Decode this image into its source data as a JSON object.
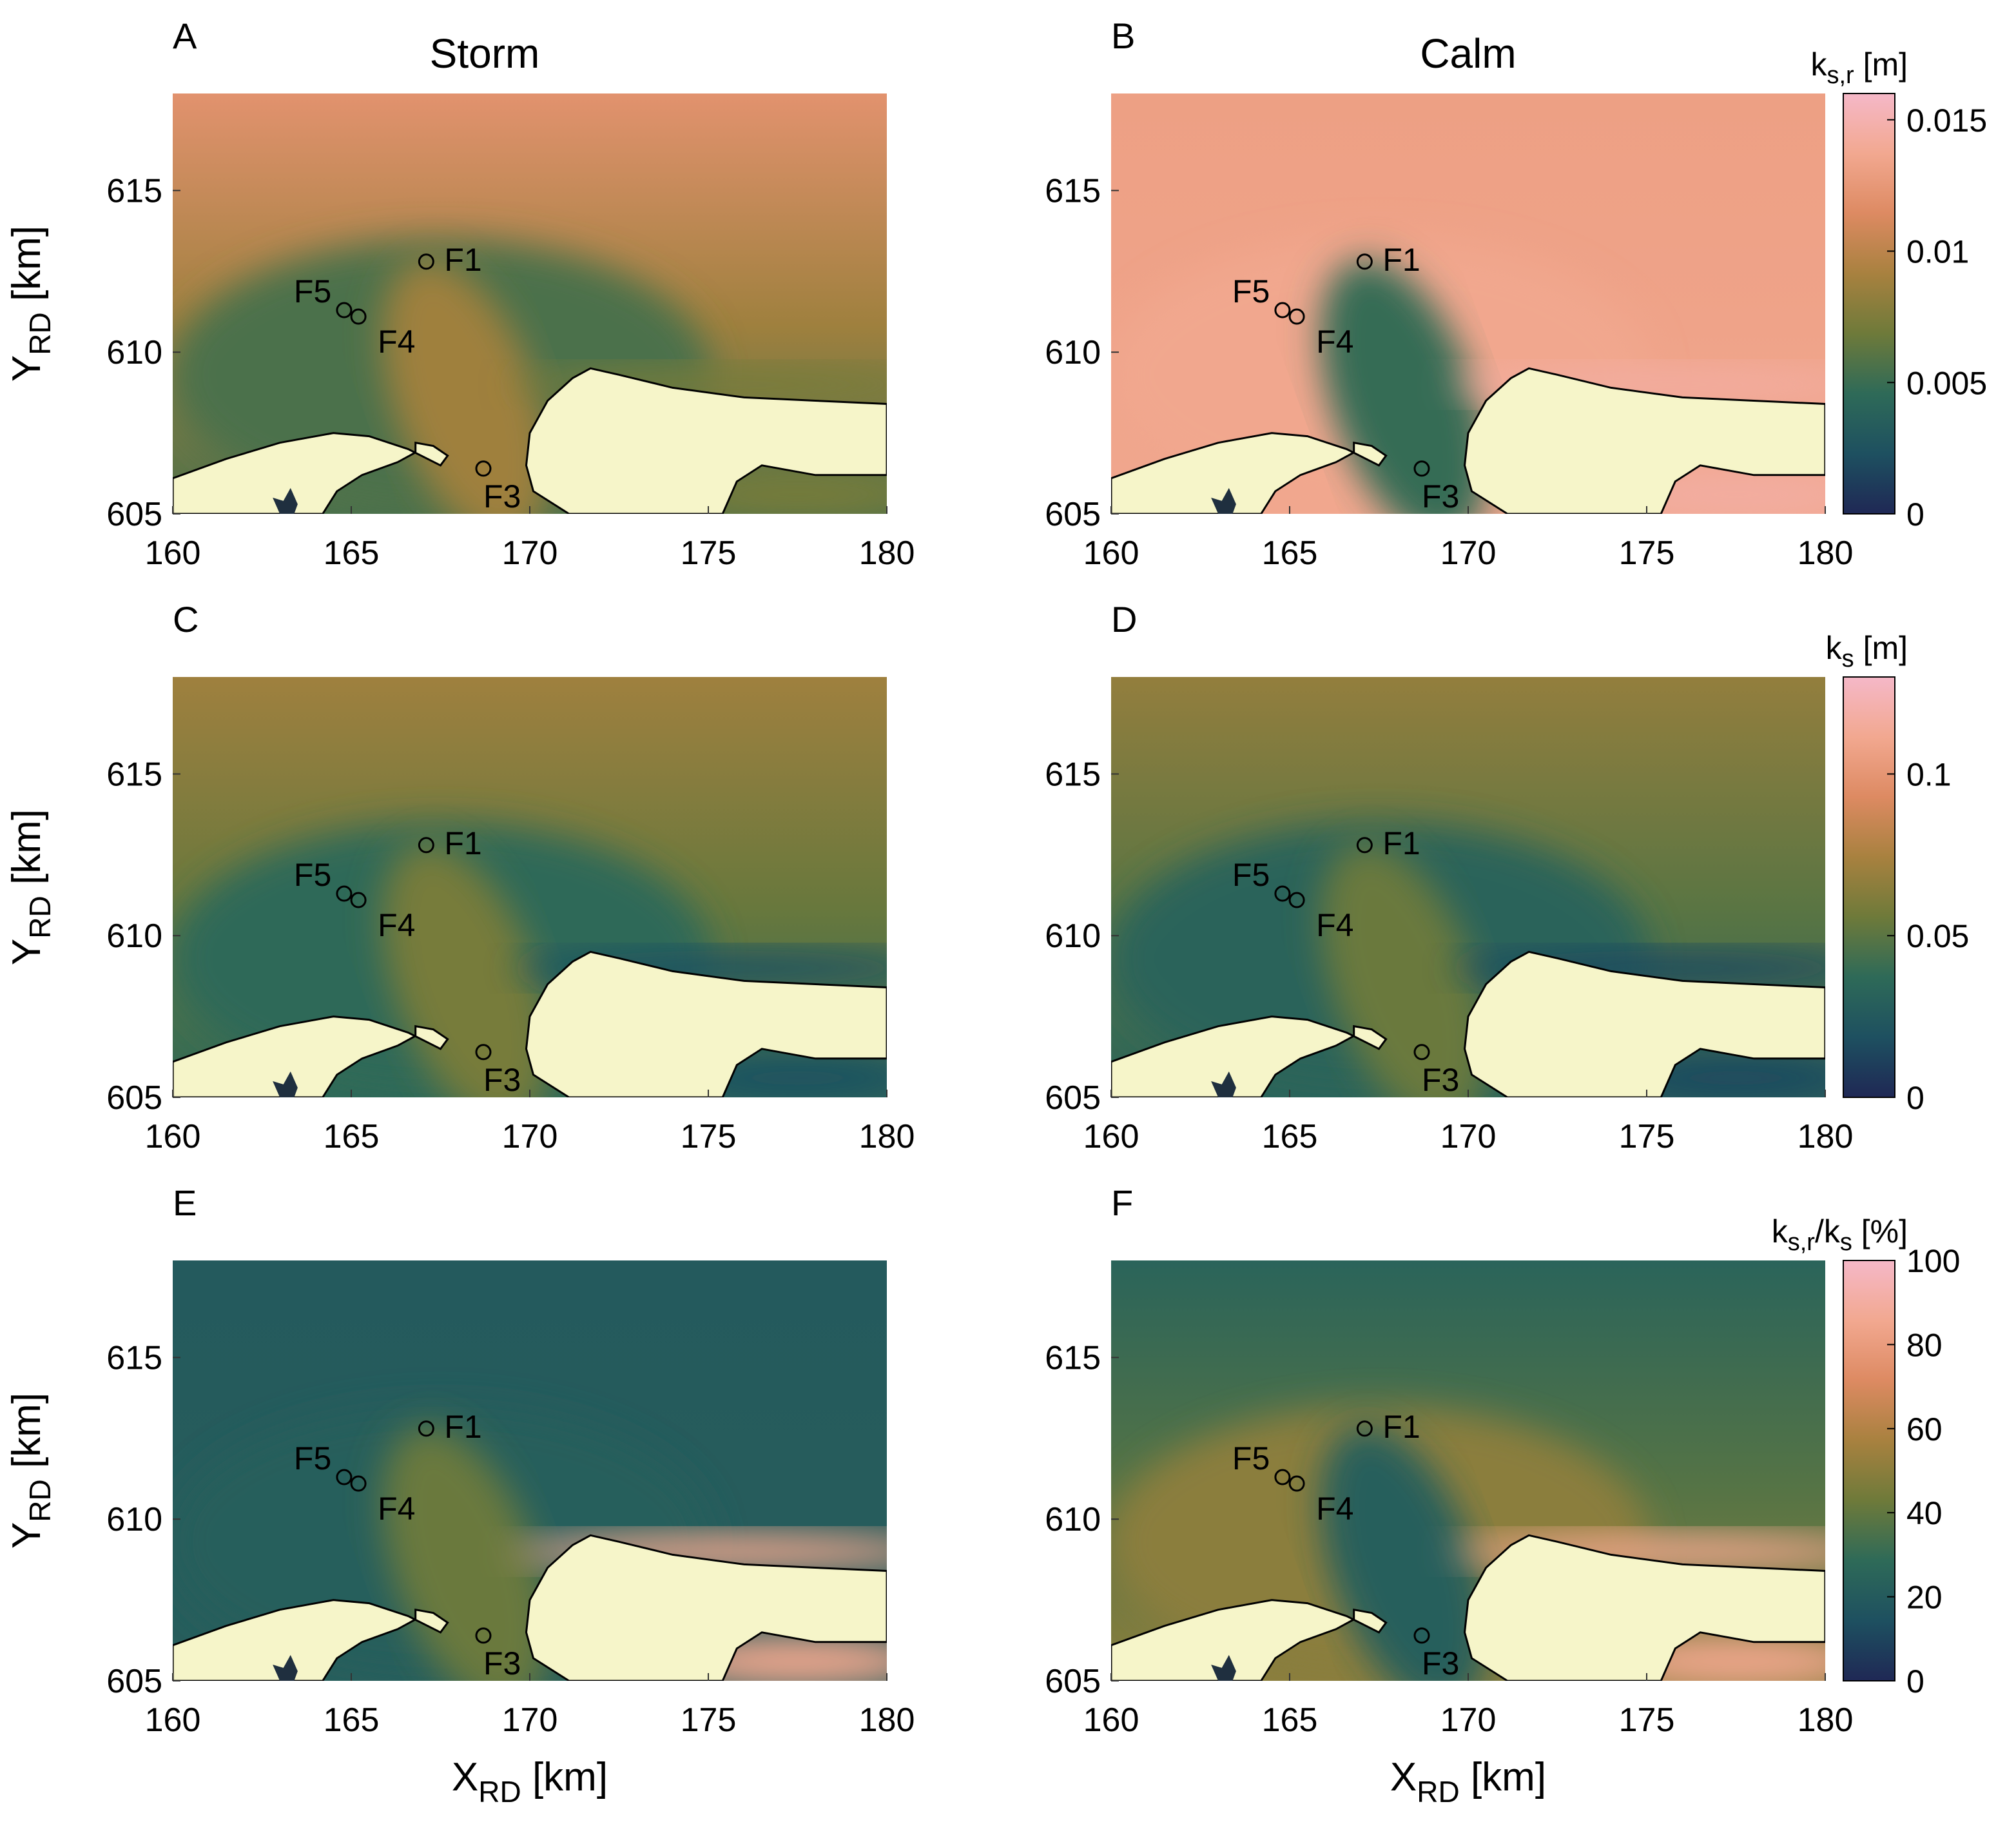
{
  "figure": {
    "columns": [
      {
        "title": "Storm"
      },
      {
        "title": "Calm"
      }
    ],
    "x_axis": {
      "label_main": "X",
      "label_sub": "RD",
      "label_unit": " [km]"
    },
    "y_axis": {
      "label_main": "Y",
      "label_sub": "RD",
      "label_unit": " [km]"
    },
    "land_color": "#f6f5c9",
    "colormap": [
      "#1f2855",
      "#1e5060",
      "#2e6a58",
      "#6e7a3a",
      "#a8813f",
      "#dd8a62",
      "#f2a890",
      "#f5b8c8"
    ]
  },
  "chart_data": [
    {
      "panel": "A",
      "column": "Storm",
      "type": "heatmap",
      "quantity": "k_s,r",
      "xlim": [
        160,
        180
      ],
      "ylim": [
        605,
        618
      ],
      "xticks": [
        160,
        165,
        170,
        175,
        180
      ],
      "yticks": [
        605,
        610,
        615
      ],
      "stations": [
        {
          "name": "F1",
          "x": 167.1,
          "y": 612.8
        },
        {
          "name": "F5",
          "x": 164.8,
          "y": 611.3
        },
        {
          "name": "F4",
          "x": 165.2,
          "y": 611.1
        },
        {
          "name": "F3",
          "x": 168.7,
          "y": 606.4
        }
      ],
      "field_levels": {
        "offshore": 0.75,
        "shoal": 0.35,
        "channel": 0.55,
        "nearshore": 0.45
      }
    },
    {
      "panel": "B",
      "column": "Calm",
      "type": "heatmap",
      "quantity": "k_s,r",
      "xlim": [
        160,
        180
      ],
      "ylim": [
        605,
        618
      ],
      "xticks": [
        160,
        165,
        170,
        175,
        180
      ],
      "yticks": [
        605,
        610,
        615
      ],
      "stations": [
        {
          "name": "F1",
          "x": 167.1,
          "y": 612.8
        },
        {
          "name": "F5",
          "x": 164.8,
          "y": 611.3
        },
        {
          "name": "F4",
          "x": 165.2,
          "y": 611.1
        },
        {
          "name": "F3",
          "x": 168.7,
          "y": 606.4
        }
      ],
      "field_levels": {
        "offshore": 0.82,
        "shoal": 0.85,
        "channel": 0.3,
        "nearshore": 0.9
      },
      "colorbar": {
        "label": "k",
        "label_sub": "s,r",
        "unit": "  [m]",
        "ticks": [
          "0",
          "0.005",
          "0.01",
          "0.015"
        ],
        "tick_values": [
          0,
          0.005,
          0.01,
          0.015
        ],
        "range": [
          0,
          0.016
        ]
      }
    },
    {
      "panel": "C",
      "column": "Storm",
      "type": "heatmap",
      "quantity": "k_s",
      "xlim": [
        160,
        180
      ],
      "ylim": [
        605,
        618
      ],
      "xticks": [
        160,
        165,
        170,
        175,
        180
      ],
      "yticks": [
        605,
        610,
        615
      ],
      "stations": [
        {
          "name": "F1",
          "x": 167.1,
          "y": 612.8
        },
        {
          "name": "F5",
          "x": 164.8,
          "y": 611.3
        },
        {
          "name": "F4",
          "x": 165.2,
          "y": 611.1
        },
        {
          "name": "F3",
          "x": 168.7,
          "y": 606.4
        }
      ],
      "field_levels": {
        "offshore": 0.55,
        "shoal": 0.28,
        "channel": 0.45,
        "nearshore": 0.15
      }
    },
    {
      "panel": "D",
      "column": "Calm",
      "type": "heatmap",
      "quantity": "k_s",
      "xlim": [
        160,
        180
      ],
      "ylim": [
        605,
        618
      ],
      "xticks": [
        160,
        165,
        170,
        175,
        180
      ],
      "yticks": [
        605,
        610,
        615
      ],
      "stations": [
        {
          "name": "F1",
          "x": 167.1,
          "y": 612.8
        },
        {
          "name": "F5",
          "x": 164.8,
          "y": 611.3
        },
        {
          "name": "F4",
          "x": 165.2,
          "y": 611.1
        },
        {
          "name": "F3",
          "x": 168.7,
          "y": 606.4
        }
      ],
      "field_levels": {
        "offshore": 0.52,
        "shoal": 0.25,
        "channel": 0.42,
        "nearshore": 0.12
      },
      "colorbar": {
        "label": "k",
        "label_sub": "s",
        "unit": "  [m]",
        "ticks": [
          "0",
          "0.05",
          "0.1"
        ],
        "tick_values": [
          0,
          0.05,
          0.1
        ],
        "range": [
          0,
          0.13
        ]
      }
    },
    {
      "panel": "E",
      "column": "Storm",
      "type": "heatmap",
      "quantity": "k_s,r/k_s",
      "xlim": [
        160,
        180
      ],
      "ylim": [
        605,
        618
      ],
      "xticks": [
        160,
        165,
        170,
        175,
        180
      ],
      "yticks": [
        605,
        610,
        615
      ],
      "stations": [
        {
          "name": "F1",
          "x": 167.1,
          "y": 612.8
        },
        {
          "name": "F5",
          "x": 164.8,
          "y": 611.3
        },
        {
          "name": "F4",
          "x": 165.2,
          "y": 611.1
        },
        {
          "name": "F3",
          "x": 168.7,
          "y": 606.4
        }
      ],
      "field_levels": {
        "offshore": 0.2,
        "shoal": 0.22,
        "channel": 0.42,
        "nearshore": 0.85
      }
    },
    {
      "panel": "F",
      "column": "Calm",
      "type": "heatmap",
      "quantity": "k_s,r/k_s",
      "xlim": [
        160,
        180
      ],
      "ylim": [
        605,
        618
      ],
      "xticks": [
        160,
        165,
        170,
        175,
        180
      ],
      "yticks": [
        605,
        610,
        615
      ],
      "stations": [
        {
          "name": "F1",
          "x": 167.1,
          "y": 612.8
        },
        {
          "name": "F5",
          "x": 164.8,
          "y": 611.3
        },
        {
          "name": "F4",
          "x": 165.2,
          "y": 611.1
        },
        {
          "name": "F3",
          "x": 168.7,
          "y": 606.4
        }
      ],
      "field_levels": {
        "offshore": 0.25,
        "shoal": 0.5,
        "channel": 0.22,
        "nearshore": 0.85
      },
      "colorbar": {
        "label": "k",
        "label_sub": "s,r",
        "label_tail": "/k",
        "label_sub2": "s",
        "unit": "  [%]",
        "ticks": [
          "0",
          "20",
          "40",
          "60",
          "80",
          "100"
        ],
        "tick_values": [
          0,
          20,
          40,
          60,
          80,
          100
        ],
        "range": [
          0,
          100
        ]
      }
    }
  ]
}
